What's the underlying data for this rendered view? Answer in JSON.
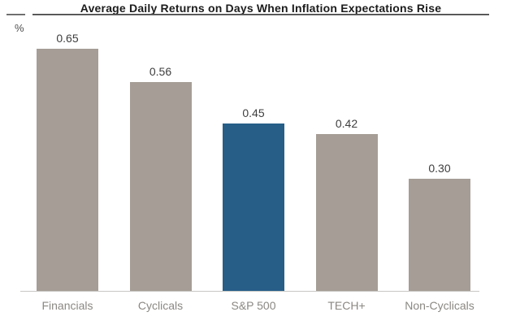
{
  "chart_data": {
    "type": "bar",
    "title": "Average Daily Returns on Days When Inflation Expectations Rise",
    "ylabel": "%",
    "categories": [
      "Financials",
      "Cyclicals",
      "S&P 500",
      "TECH+",
      "Non-Cyclicals"
    ],
    "values": [
      0.65,
      0.56,
      0.45,
      0.42,
      0.3
    ],
    "value_labels": [
      "0.65",
      "0.56",
      "0.45",
      "0.42",
      "0.30"
    ],
    "ylim": [
      0,
      0.65
    ],
    "grid": false,
    "legend": false,
    "highlight_index": 2,
    "highlight_color": "#265e88",
    "default_bar_color": "#a59d96",
    "baseline_color": "#c9c7c4",
    "title_color": "#1c1c1c",
    "value_label_color": "#3e3e3e",
    "category_label_color": "#8b8883"
  }
}
